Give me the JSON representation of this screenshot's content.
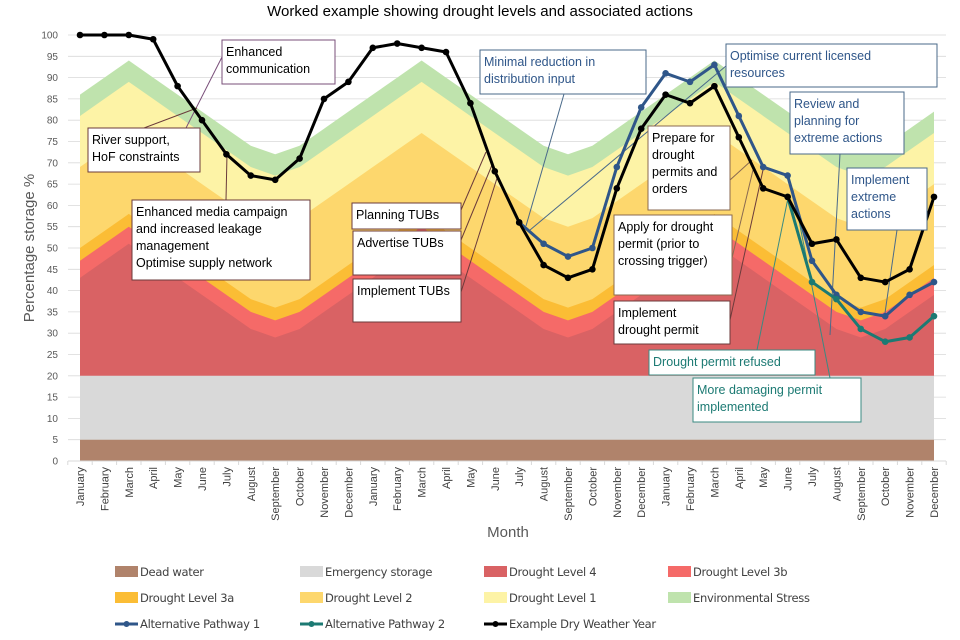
{
  "chart_data": {
    "type": "area",
    "title": "Worked example showing drought levels and associated actions",
    "xlabel": "Month",
    "ylabel": "Percentage storage %",
    "ylim": [
      0,
      100
    ],
    "yticks": [
      0,
      5,
      10,
      15,
      20,
      25,
      30,
      35,
      40,
      45,
      50,
      55,
      60,
      65,
      70,
      75,
      80,
      85,
      90,
      95,
      100
    ],
    "grid": true,
    "legend_position": "bottom",
    "categories": [
      "January",
      "February",
      "March",
      "April",
      "May",
      "June",
      "July",
      "August",
      "September",
      "October",
      "November",
      "December",
      "January",
      "February",
      "March",
      "April",
      "May",
      "June",
      "July",
      "August",
      "September",
      "October",
      "November",
      "December",
      "January",
      "February",
      "March",
      "April",
      "May",
      "June",
      "July",
      "August",
      "September",
      "October",
      "November",
      "December"
    ],
    "bands": [
      {
        "name": "Dead water",
        "color": "#b0836b",
        "top": [
          5,
          5,
          5,
          5,
          5,
          5,
          5,
          5,
          5,
          5,
          5,
          5,
          5,
          5,
          5,
          5,
          5,
          5,
          5,
          5,
          5,
          5,
          5,
          5,
          5,
          5,
          5,
          5,
          5,
          5,
          5,
          5,
          5,
          5,
          5,
          5
        ]
      },
      {
        "name": "Emergency storage",
        "color": "#d9d9d9",
        "top": [
          20,
          20,
          20,
          20,
          20,
          20,
          20,
          20,
          20,
          20,
          20,
          20,
          20,
          20,
          20,
          20,
          20,
          20,
          20,
          20,
          20,
          20,
          20,
          20,
          20,
          20,
          20,
          20,
          20,
          20,
          20,
          20,
          20,
          20,
          20,
          20
        ]
      },
      {
        "name": "Drought Level 4",
        "color": "#d96264",
        "top": [
          43,
          47,
          51,
          47,
          43,
          39,
          35,
          31,
          29,
          31,
          35,
          39,
          43,
          47,
          51,
          47,
          43,
          39,
          35,
          31,
          29,
          31,
          35,
          39,
          43,
          47,
          51,
          47,
          43,
          39,
          35,
          31,
          29,
          31,
          35,
          39
        ]
      },
      {
        "name": "Drought Level 3b",
        "color": "#f56a68",
        "top": [
          47,
          51,
          55,
          51,
          47,
          43,
          39,
          35,
          33,
          35,
          39,
          43,
          47,
          51,
          55,
          51,
          47,
          43,
          39,
          35,
          33,
          35,
          39,
          43,
          47,
          51,
          55,
          51,
          47,
          43,
          39,
          35,
          33,
          35,
          39,
          43
        ]
      },
      {
        "name": "Drought Level 3a",
        "color": "#fbbd35",
        "top": [
          50,
          54,
          58,
          54,
          50,
          46,
          42,
          38,
          36,
          38,
          42,
          46,
          50,
          54,
          58,
          54,
          50,
          46,
          42,
          38,
          36,
          38,
          42,
          46,
          50,
          54,
          58,
          54,
          50,
          46,
          42,
          38,
          36,
          38,
          42,
          46
        ]
      },
      {
        "name": "Drought Level 2",
        "color": "#fdd76d",
        "top": [
          69,
          73,
          77,
          73,
          69,
          65,
          61,
          57,
          55,
          57,
          61,
          65,
          69,
          73,
          77,
          73,
          69,
          65,
          61,
          57,
          55,
          57,
          61,
          65,
          69,
          73,
          77,
          73,
          69,
          65,
          61,
          57,
          55,
          57,
          61,
          65
        ]
      },
      {
        "name": "Drought Level 1",
        "color": "#fdf3a6",
        "top": [
          81,
          85,
          89,
          85,
          81,
          77,
          73,
          69,
          67,
          69,
          73,
          77,
          81,
          85,
          89,
          85,
          81,
          77,
          73,
          69,
          67,
          69,
          73,
          77,
          81,
          85,
          89,
          85,
          81,
          77,
          73,
          69,
          67,
          69,
          73,
          77
        ]
      },
      {
        "name": "Environmental Stress",
        "color": "#bfe3ad",
        "top": [
          86,
          90,
          94,
          90,
          86,
          82,
          78,
          74,
          72,
          74,
          78,
          82,
          86,
          90,
          94,
          90,
          86,
          82,
          78,
          74,
          72,
          74,
          78,
          82,
          86,
          90,
          94,
          90,
          86,
          82,
          78,
          74,
          72,
          74,
          78,
          82
        ]
      }
    ],
    "series": [
      {
        "name": "Alternative Pathway 1",
        "color": "#2f5689",
        "start_index": 18,
        "values": [
          56,
          51,
          48,
          50,
          69,
          83,
          91,
          89,
          93,
          81,
          69,
          67,
          47,
          39,
          35,
          34,
          39,
          42
        ]
      },
      {
        "name": "Alternative Pathway 2",
        "color": "#1c7a73",
        "start_index": 29,
        "values": [
          62,
          42,
          38,
          31,
          28,
          29,
          34
        ]
      },
      {
        "name": "Example Dry Weather Year",
        "color": "#000000",
        "start_index": 0,
        "values": [
          100,
          100,
          100,
          99,
          88,
          80,
          72,
          67,
          66,
          71,
          85,
          89,
          97,
          98,
          97,
          96,
          84,
          68,
          56,
          46,
          43,
          45,
          64,
          78,
          86,
          84,
          88,
          76,
          64,
          62,
          51,
          52,
          43,
          42,
          45,
          62
        ]
      }
    ],
    "annotations": [
      {
        "id": "enhanced-communication",
        "lines": [
          "Enhanced",
          "communication"
        ],
        "color": "#000000",
        "border": "#7a4f7a"
      },
      {
        "id": "river-support",
        "lines": [
          "River support,",
          "HoF constraints"
        ],
        "color": "#000000",
        "border": "#6b3b3b"
      },
      {
        "id": "media-campaign",
        "lines": [
          "Enhanced media campaign",
          "and increased leakage",
          "management",
          "Optimise supply network"
        ],
        "color": "#000000",
        "border": "#6b3b3b"
      },
      {
        "id": "planning-tubs",
        "lines": [
          "Planning TUBs"
        ],
        "color": "#000000",
        "border": "#6b3b3b"
      },
      {
        "id": "advertise-tubs",
        "lines": [
          "Advertise TUBs"
        ],
        "color": "#000000",
        "border": "#6b3b3b"
      },
      {
        "id": "implement-tubs",
        "lines": [
          "Implement TUBs"
        ],
        "color": "#000000",
        "border": "#6b3b3b"
      },
      {
        "id": "minimal-reduction",
        "lines": [
          "Minimal reduction in",
          "distribution input"
        ],
        "color": "#2f5689",
        "border": "#4a6a8a"
      },
      {
        "id": "optimise-licensed",
        "lines": [
          "Optimise current licensed",
          "resources"
        ],
        "color": "#2f5689",
        "border": "#4a6a8a"
      },
      {
        "id": "prepare-permits",
        "lines": [
          "Prepare for",
          "drought",
          "permits and",
          "orders"
        ],
        "color": "#000000",
        "border": "#8a6a50"
      },
      {
        "id": "apply-permit",
        "lines": [
          "Apply for drought",
          "permit (prior to",
          "crossing trigger)"
        ],
        "color": "#000000",
        "border": "#8a6a50"
      },
      {
        "id": "implement-permit",
        "lines": [
          "Implement",
          "drought permit"
        ],
        "color": "#000000",
        "border": "#6b3b3b"
      },
      {
        "id": "review-planning",
        "lines": [
          "Review and",
          "planning for",
          "extreme actions"
        ],
        "color": "#2f5689",
        "border": "#4a6a8a"
      },
      {
        "id": "implement-extreme",
        "lines": [
          "Implement",
          "extreme",
          "actions"
        ],
        "color": "#2f5689",
        "border": "#4a6a8a"
      },
      {
        "id": "permit-refused",
        "lines": [
          "Drought permit refused"
        ],
        "color": "#1c7a73",
        "border": "#3a8a82"
      },
      {
        "id": "more-damaging",
        "lines": [
          "More damaging permit",
          "implemented"
        ],
        "color": "#1c7a73",
        "border": "#3a8a82"
      }
    ],
    "legend": [
      {
        "name": "Dead water",
        "kind": "box",
        "color": "#b0836b"
      },
      {
        "name": "Emergency storage",
        "kind": "box",
        "color": "#d9d9d9"
      },
      {
        "name": "Drought Level 4",
        "kind": "box",
        "color": "#d96264"
      },
      {
        "name": "Drought Level 3b",
        "kind": "box",
        "color": "#f56a68"
      },
      {
        "name": "Drought Level 3a",
        "kind": "box",
        "color": "#fbbd35"
      },
      {
        "name": "Drought Level 2",
        "kind": "box",
        "color": "#fdd76d"
      },
      {
        "name": "Drought Level 1",
        "kind": "box",
        "color": "#fdf3a6"
      },
      {
        "name": "Environmental Stress",
        "kind": "box",
        "color": "#bfe3ad"
      },
      {
        "name": "Alternative Pathway 1",
        "kind": "line",
        "color": "#2f5689"
      },
      {
        "name": "Alternative Pathway 2",
        "kind": "line",
        "color": "#1c7a73"
      },
      {
        "name": "Example Dry Weather Year",
        "kind": "line",
        "color": "#000000"
      }
    ]
  }
}
